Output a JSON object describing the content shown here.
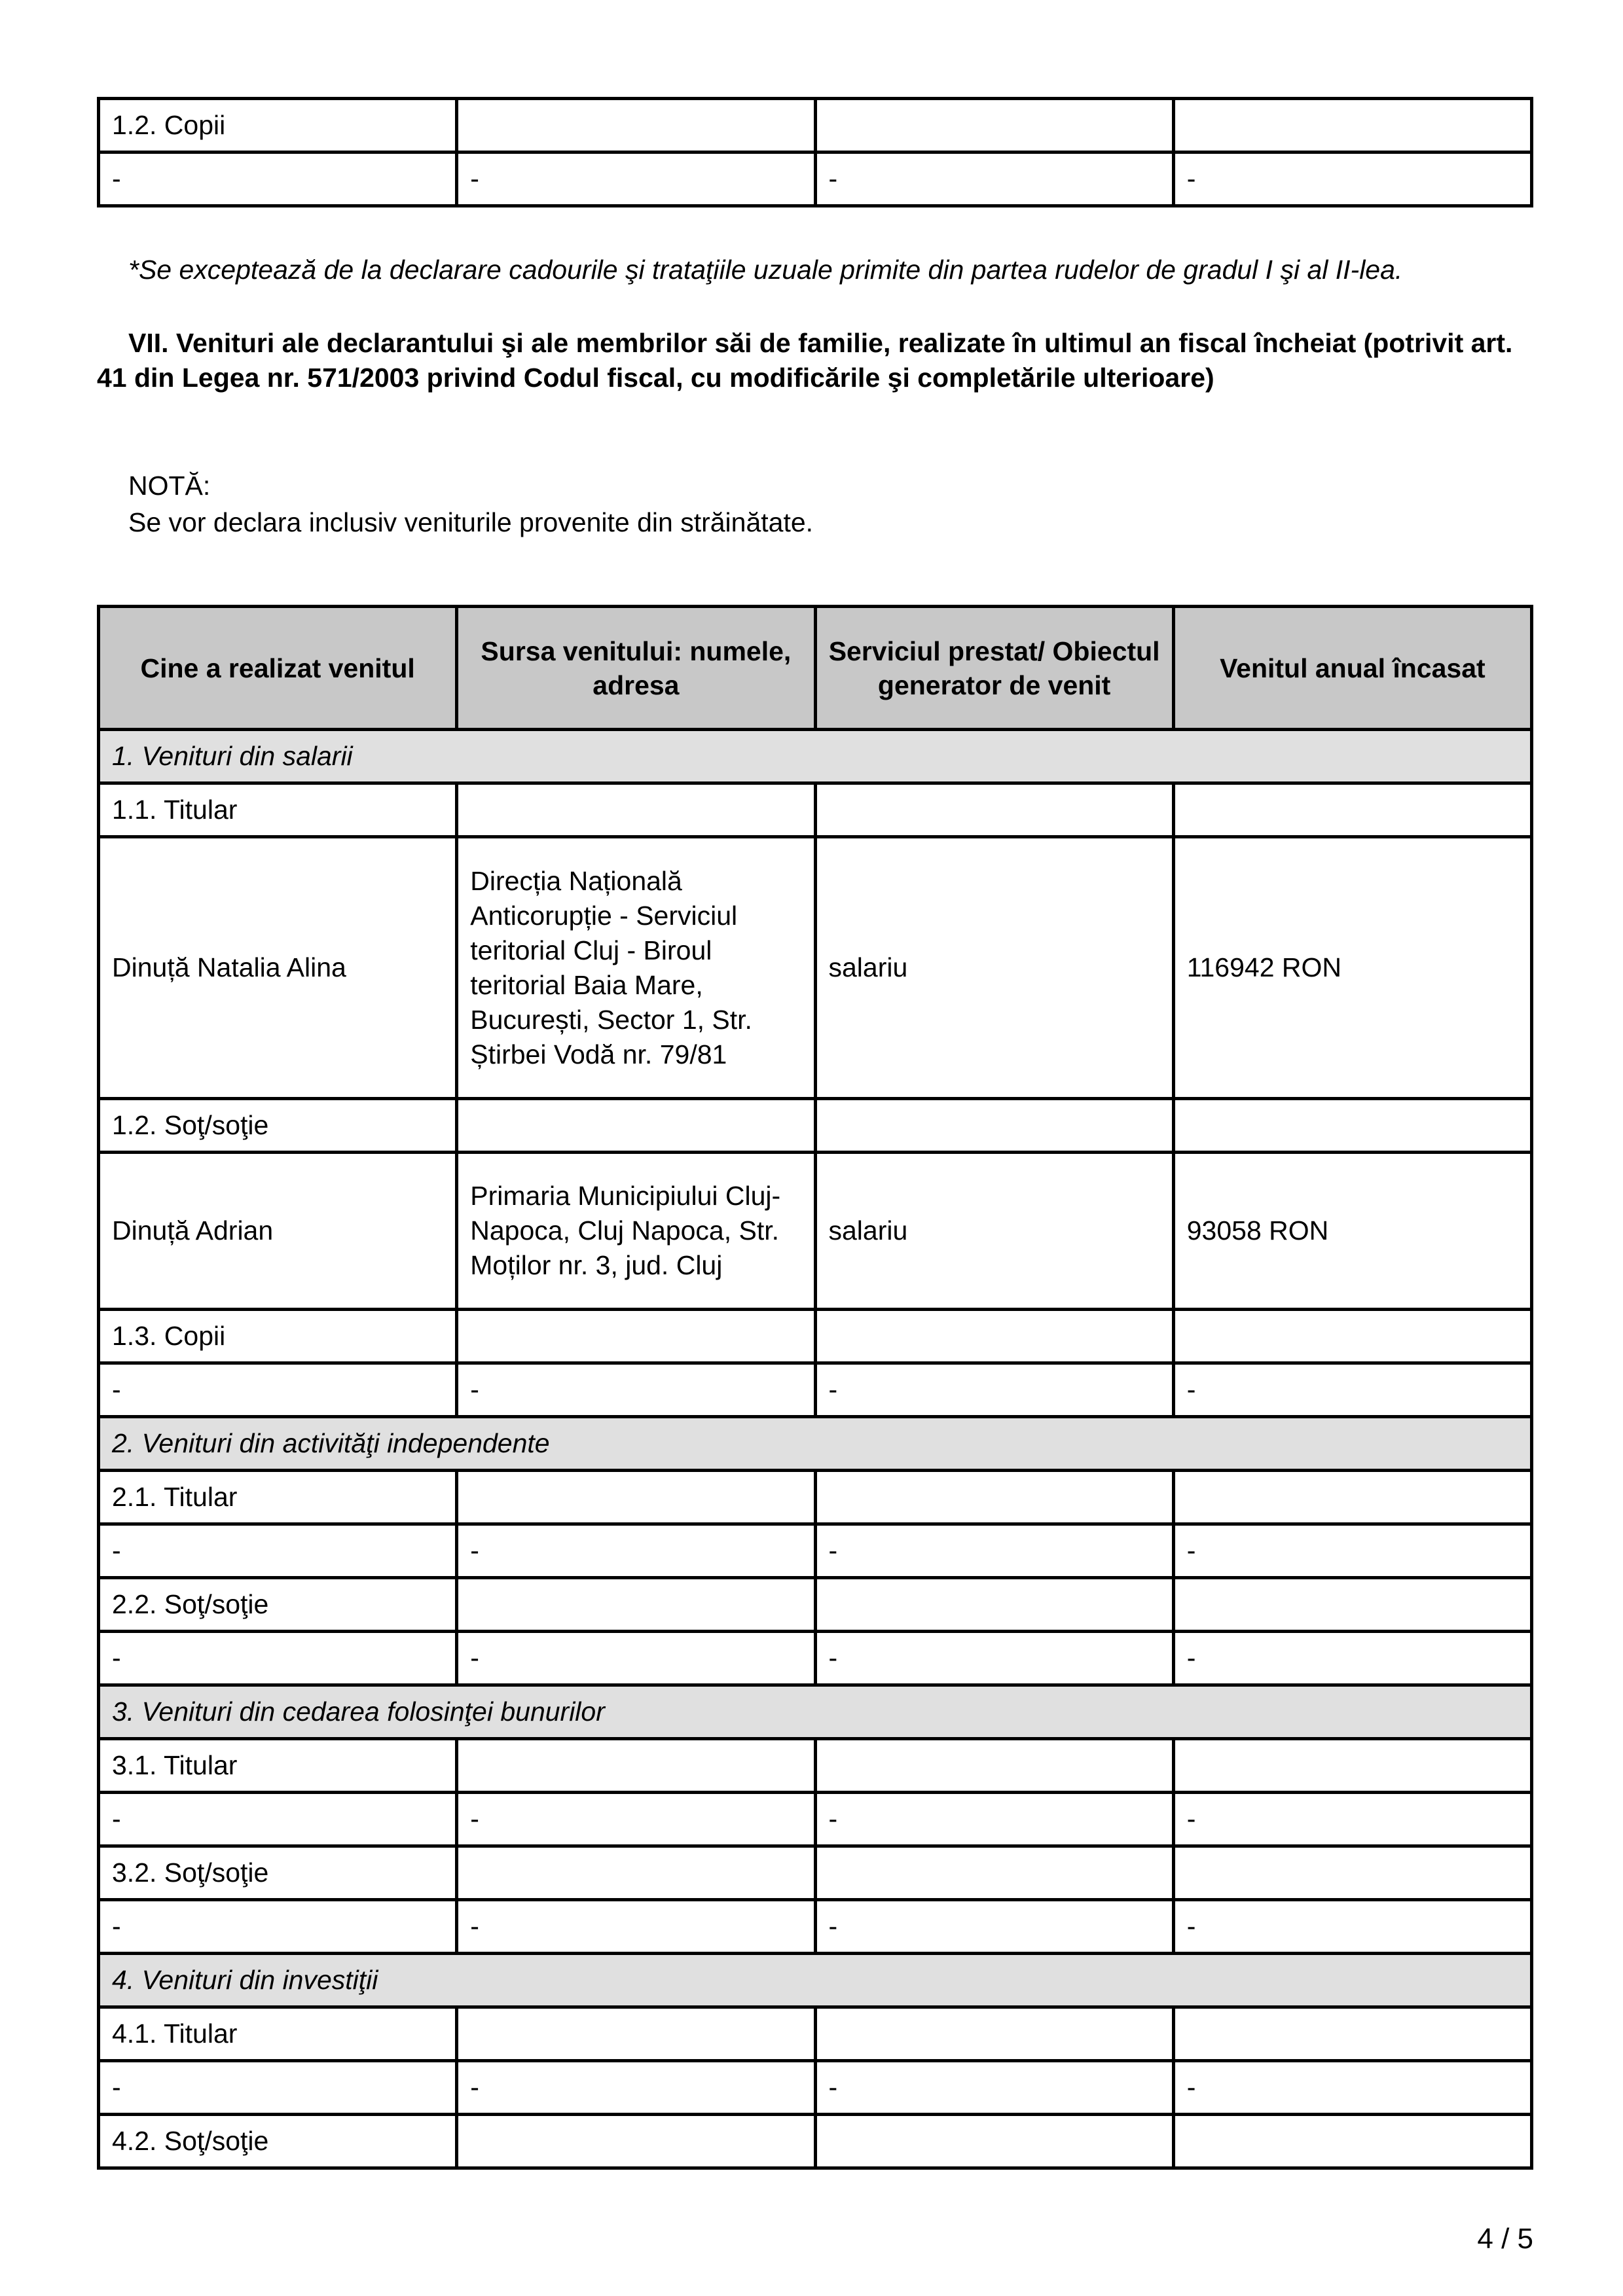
{
  "top_table": {
    "rows": [
      [
        "1.2. Copii",
        "",
        "",
        ""
      ],
      [
        "-",
        "-",
        "-",
        "-"
      ]
    ]
  },
  "footnote": "*Se exceptează de la declarare cadourile şi trataţiile uzuale primite din partea rudelor de gradul I şi al II-lea.",
  "section_heading": "VII. Venituri ale declarantului şi ale membrilor săi de familie, realizate în ultimul an fiscal încheiat (potrivit art. 41 din Legea nr. 571/2003 privind Codul fiscal, cu modificările şi completările ulterioare)",
  "note_label": "NOTĂ:",
  "note_text": "Se vor declara inclusiv veniturile provenite din străinătate.",
  "income_table": {
    "headers": [
      "Cine a realizat venitul",
      "Sursa venitului: numele, adresa",
      "Serviciul prestat/ Obiectul generator de venit",
      "Venitul anual încasat"
    ],
    "rows": [
      {
        "section": "1. Venituri din salarii"
      },
      {
        "cells": [
          "1.1. Titular",
          "",
          "",
          ""
        ]
      },
      {
        "cells": [
          "Dinuță Natalia Alina",
          "Direcția Națională Anticorupție - Serviciul teritorial Cluj - Biroul teritorial Baia Mare, București, Sector 1, Str. Știrbei Vodă nr. 79/81",
          "salariu",
          "116942 RON"
        ],
        "tall": 400
      },
      {
        "cells": [
          "1.2. Soţ/soţie",
          "",
          "",
          ""
        ]
      },
      {
        "cells": [
          "Dinuță Adrian",
          "Primaria Municipiului Cluj-Napoca, Cluj Napoca, Str. Moților nr. 3, jud. Cluj",
          "salariu",
          "93058 RON"
        ],
        "tall": 240
      },
      {
        "cells": [
          "1.3. Copii",
          "",
          "",
          ""
        ]
      },
      {
        "cells": [
          "-",
          "-",
          "-",
          "-"
        ]
      },
      {
        "section": "2. Venituri din activităţi independente"
      },
      {
        "cells": [
          "2.1. Titular",
          "",
          "",
          ""
        ]
      },
      {
        "cells": [
          "-",
          "-",
          "-",
          "-"
        ]
      },
      {
        "cells": [
          "2.2. Soţ/soţie",
          "",
          "",
          ""
        ]
      },
      {
        "cells": [
          "-",
          "-",
          "-",
          "-"
        ]
      },
      {
        "section": "3. Venituri din cedarea folosinţei bunurilor"
      },
      {
        "cells": [
          "3.1. Titular",
          "",
          "",
          ""
        ]
      },
      {
        "cells": [
          "-",
          "-",
          "-",
          "-"
        ]
      },
      {
        "cells": [
          "3.2. Soţ/soţie",
          "",
          "",
          ""
        ]
      },
      {
        "cells": [
          "-",
          "-",
          "-",
          "-"
        ]
      },
      {
        "section": "4. Venituri din investiţii"
      },
      {
        "cells": [
          "4.1. Titular",
          "",
          "",
          ""
        ]
      },
      {
        "cells": [
          "-",
          "-",
          "-",
          "-"
        ]
      },
      {
        "cells": [
          "4.2. Soţ/soţie",
          "",
          "",
          ""
        ]
      }
    ]
  },
  "page_number": "4 / 5"
}
